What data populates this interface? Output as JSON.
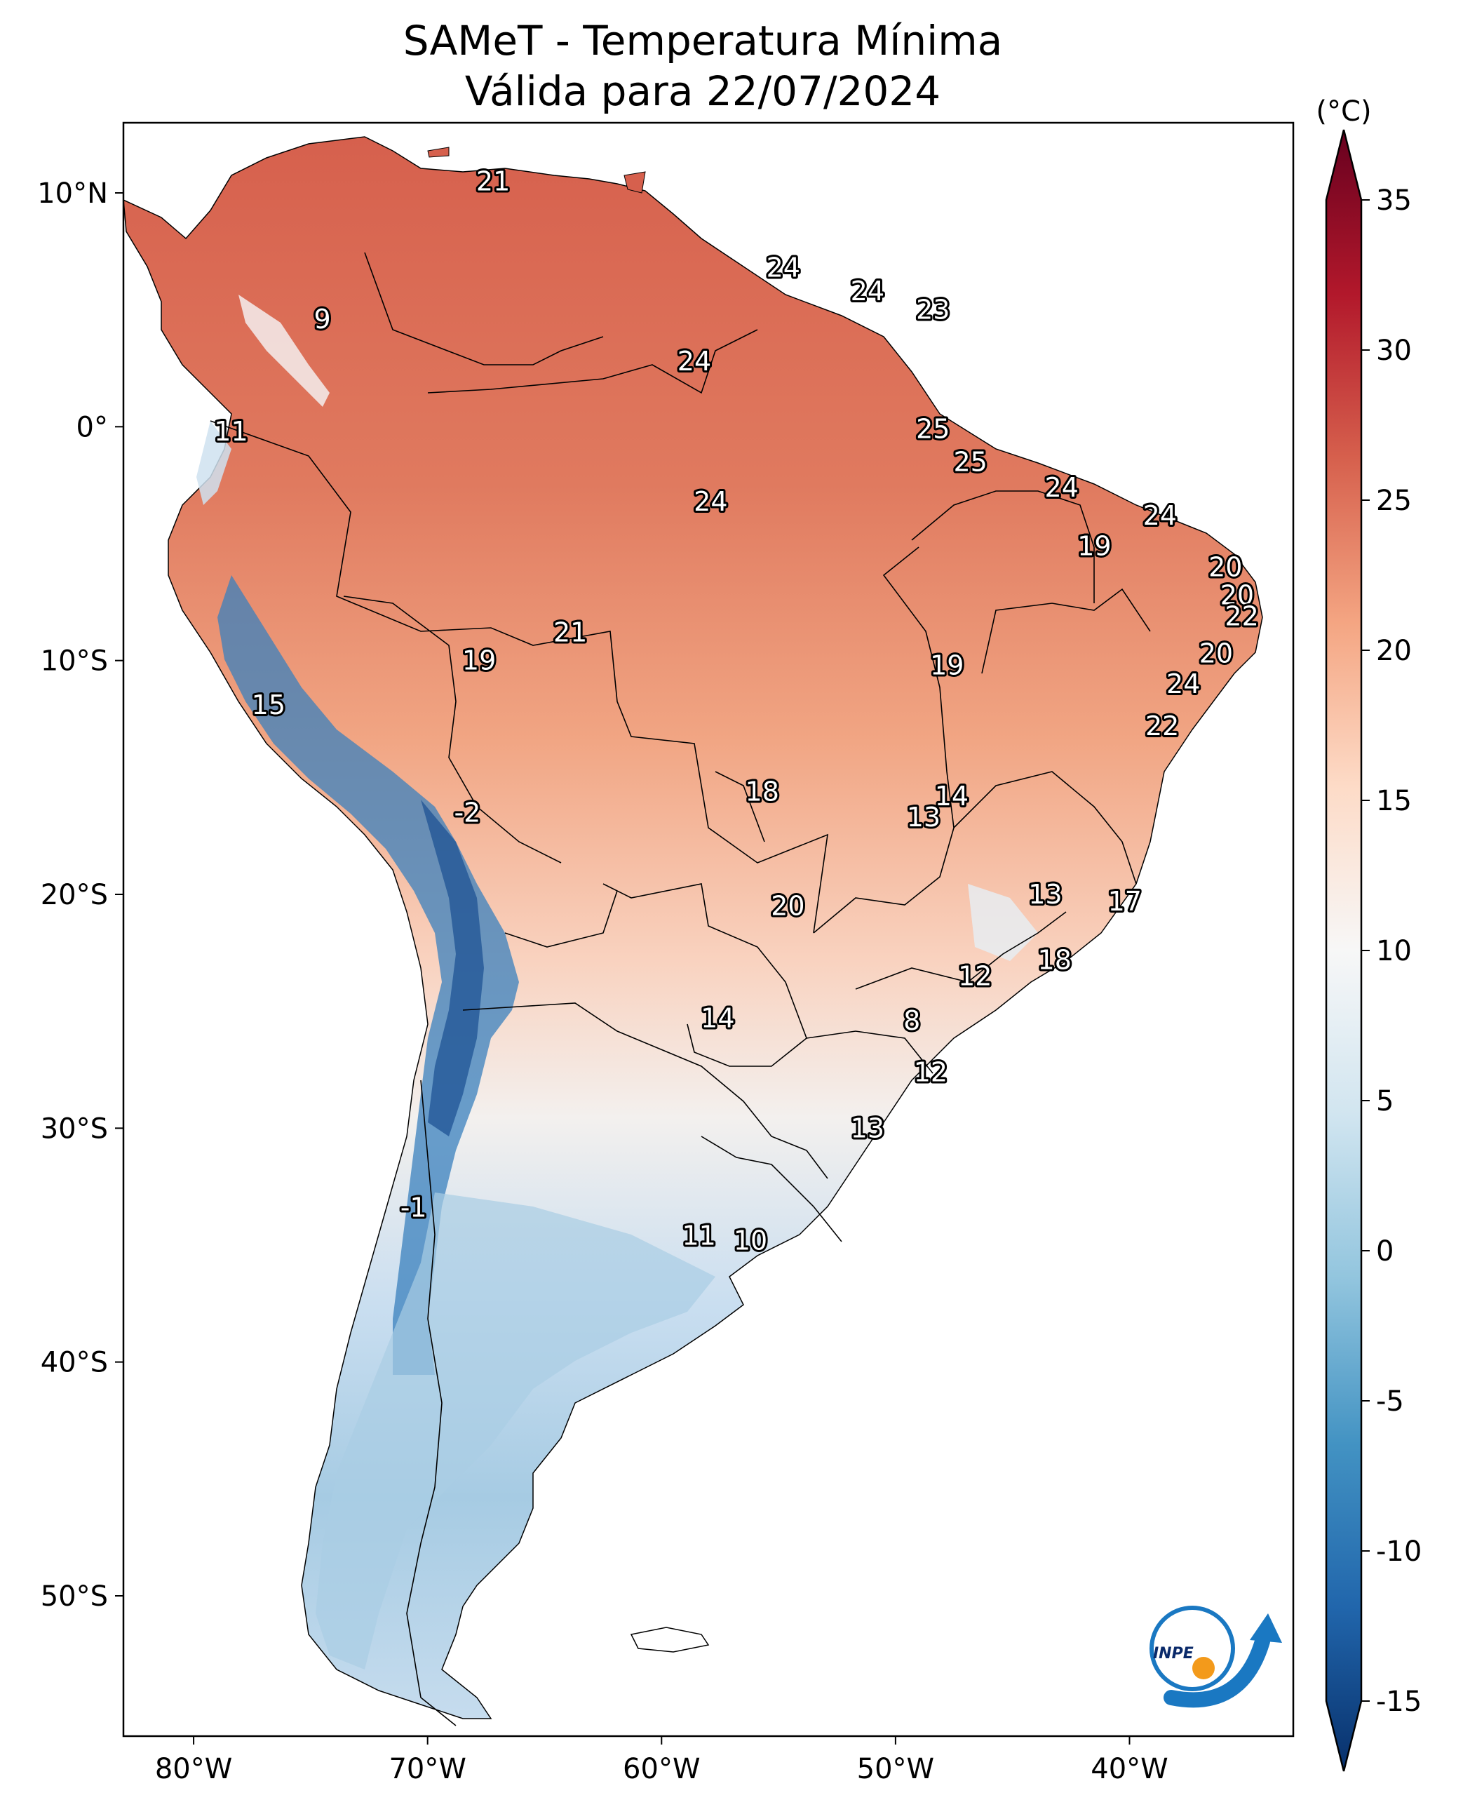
{
  "title": {
    "line1": "SAMeT - Temperatura Mínima",
    "line2": "Válida para 22/07/2024"
  },
  "colorbar": {
    "unit": "(°C)",
    "ticks": [
      "35",
      "30",
      "25",
      "20",
      "15",
      "10",
      "5",
      "0",
      "-5",
      "-10",
      "-15"
    ],
    "tick_values": [
      35,
      30,
      25,
      20,
      15,
      10,
      5,
      0,
      -5,
      -10,
      -15
    ],
    "range": [
      -15,
      35
    ],
    "colormap": "RdBu_r",
    "colors": [
      "#08306b",
      "#2166ac",
      "#4393c3",
      "#92c5de",
      "#d1e5f0",
      "#f7f7f7",
      "#fddbc7",
      "#f4a582",
      "#d6604d",
      "#b2182b",
      "#67001f"
    ]
  },
  "axes": {
    "lon_labels": [
      "80°W",
      "70°W",
      "60°W",
      "50°W",
      "40°W"
    ],
    "lon_values": [
      -80,
      -70,
      -60,
      -50,
      -40
    ],
    "lat_labels": [
      "10°N",
      "0°",
      "10°S",
      "20°S",
      "30°S",
      "40°S",
      "50°S"
    ],
    "lat_values": [
      10,
      0,
      -10,
      -20,
      -30,
      -40,
      -50
    ],
    "lon_range": [
      -83,
      -33
    ],
    "lat_range": [
      -56,
      13
    ]
  },
  "stations": [
    {
      "lon": -67.2,
      "lat": 10.5,
      "value": "21"
    },
    {
      "lon": -54.8,
      "lat": 6.8,
      "value": "24"
    },
    {
      "lon": -51.2,
      "lat": 5.8,
      "value": "24"
    },
    {
      "lon": -48.4,
      "lat": 5.0,
      "value": "23"
    },
    {
      "lon": -58.6,
      "lat": 2.8,
      "value": "24"
    },
    {
      "lon": -74.5,
      "lat": 4.6,
      "value": "9"
    },
    {
      "lon": -78.4,
      "lat": -0.2,
      "value": "11"
    },
    {
      "lon": -48.4,
      "lat": -0.1,
      "value": "25"
    },
    {
      "lon": -46.8,
      "lat": -1.5,
      "value": "25"
    },
    {
      "lon": -57.9,
      "lat": -3.2,
      "value": "24"
    },
    {
      "lon": -42.9,
      "lat": -2.6,
      "value": "24"
    },
    {
      "lon": -38.7,
      "lat": -3.8,
      "value": "24"
    },
    {
      "lon": -41.5,
      "lat": -5.1,
      "value": "19"
    },
    {
      "lon": -35.9,
      "lat": -6.0,
      "value": "20"
    },
    {
      "lon": -35.4,
      "lat": -7.2,
      "value": "20"
    },
    {
      "lon": -35.2,
      "lat": -8.1,
      "value": "22"
    },
    {
      "lon": -63.9,
      "lat": -8.8,
      "value": "21"
    },
    {
      "lon": -67.8,
      "lat": -10.0,
      "value": "19"
    },
    {
      "lon": -47.8,
      "lat": -10.2,
      "value": "19"
    },
    {
      "lon": -36.3,
      "lat": -9.7,
      "value": "20"
    },
    {
      "lon": -37.7,
      "lat": -11.0,
      "value": "24"
    },
    {
      "lon": -38.6,
      "lat": -12.8,
      "value": "22"
    },
    {
      "lon": -76.8,
      "lat": -11.9,
      "value": "15"
    },
    {
      "lon": -55.7,
      "lat": -15.6,
      "value": "18"
    },
    {
      "lon": -47.6,
      "lat": -15.8,
      "value": "14"
    },
    {
      "lon": -48.8,
      "lat": -16.7,
      "value": "13"
    },
    {
      "lon": -68.3,
      "lat": -16.5,
      "value": "-2"
    },
    {
      "lon": -54.6,
      "lat": -20.5,
      "value": "20"
    },
    {
      "lon": -43.6,
      "lat": -20.0,
      "value": "13"
    },
    {
      "lon": -40.2,
      "lat": -20.3,
      "value": "17"
    },
    {
      "lon": -43.2,
      "lat": -22.8,
      "value": "18"
    },
    {
      "lon": -46.6,
      "lat": -23.5,
      "value": "12"
    },
    {
      "lon": -57.6,
      "lat": -25.3,
      "value": "14"
    },
    {
      "lon": -49.3,
      "lat": -25.4,
      "value": "8"
    },
    {
      "lon": -48.5,
      "lat": -27.6,
      "value": "12"
    },
    {
      "lon": -51.2,
      "lat": -30.0,
      "value": "13"
    },
    {
      "lon": -70.6,
      "lat": -33.4,
      "value": "-1"
    },
    {
      "lon": -58.4,
      "lat": -34.6,
      "value": "11"
    },
    {
      "lon": -56.2,
      "lat": -34.8,
      "value": "10"
    }
  ],
  "logo": {
    "text": "INPE"
  }
}
